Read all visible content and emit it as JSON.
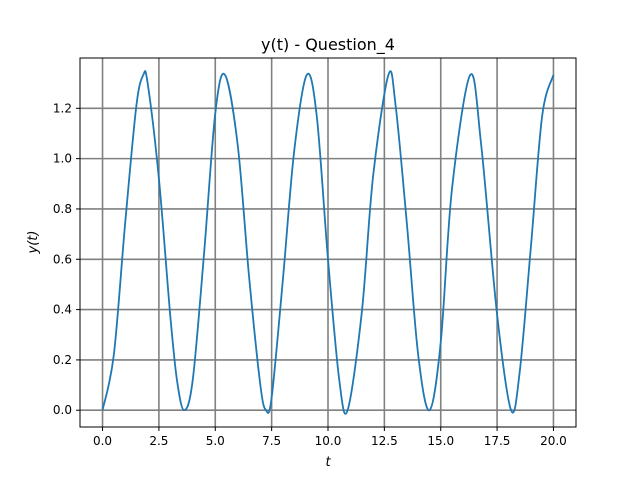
{
  "chart_data": {
    "type": "line",
    "title": "y(t) - Question_4",
    "xlabel": "t",
    "ylabel": "y(t)",
    "xlim": [
      -1.0,
      21.0
    ],
    "ylim": [
      -0.0667,
      1.4
    ],
    "xticks": [
      0.0,
      2.5,
      5.0,
      7.5,
      10.0,
      12.5,
      15.0,
      17.5,
      20.0
    ],
    "xtick_labels": [
      "0.0",
      "2.5",
      "5.0",
      "7.5",
      "10.0",
      "12.5",
      "15.0",
      "17.5",
      "20.0"
    ],
    "yticks": [
      0.0,
      0.2,
      0.4,
      0.6,
      0.8,
      1.0,
      1.2
    ],
    "ytick_labels": [
      "0.0",
      "0.2",
      "0.4",
      "0.6",
      "0.8",
      "1.0",
      "1.2"
    ],
    "grid": true,
    "grid_color": "#808080",
    "series": [
      {
        "color": "#1f77b4",
        "x": [
          0.0,
          0.5,
          1.0,
          1.5,
          1.81,
          2.0,
          2.5,
          3.0,
          3.3,
          3.62,
          4.0,
          4.5,
          5.0,
          5.43,
          6.0,
          6.5,
          7.0,
          7.25,
          7.5,
          8.0,
          8.5,
          9.06,
          9.5,
          10.0,
          10.5,
          10.87,
          11.5,
          12.0,
          12.68,
          13.0,
          13.5,
          14.0,
          14.5,
          15.0,
          15.5,
          16.31,
          16.8,
          17.5,
          18.12,
          18.5,
          19.0,
          19.5,
          20.0
        ],
        "y": [
          0.0,
          0.22,
          0.74,
          1.21,
          1.333,
          1.3,
          0.92,
          0.38,
          0.12,
          0.0,
          0.12,
          0.62,
          1.18,
          1.333,
          1.05,
          0.53,
          0.1,
          0.0,
          0.05,
          0.52,
          1.03,
          1.333,
          1.17,
          0.6,
          0.12,
          0.0,
          0.39,
          0.93,
          1.333,
          1.21,
          0.74,
          0.22,
          0.0,
          0.27,
          0.88,
          1.333,
          1.05,
          0.38,
          0.0,
          0.15,
          0.65,
          1.17,
          1.333
        ]
      }
    ]
  }
}
